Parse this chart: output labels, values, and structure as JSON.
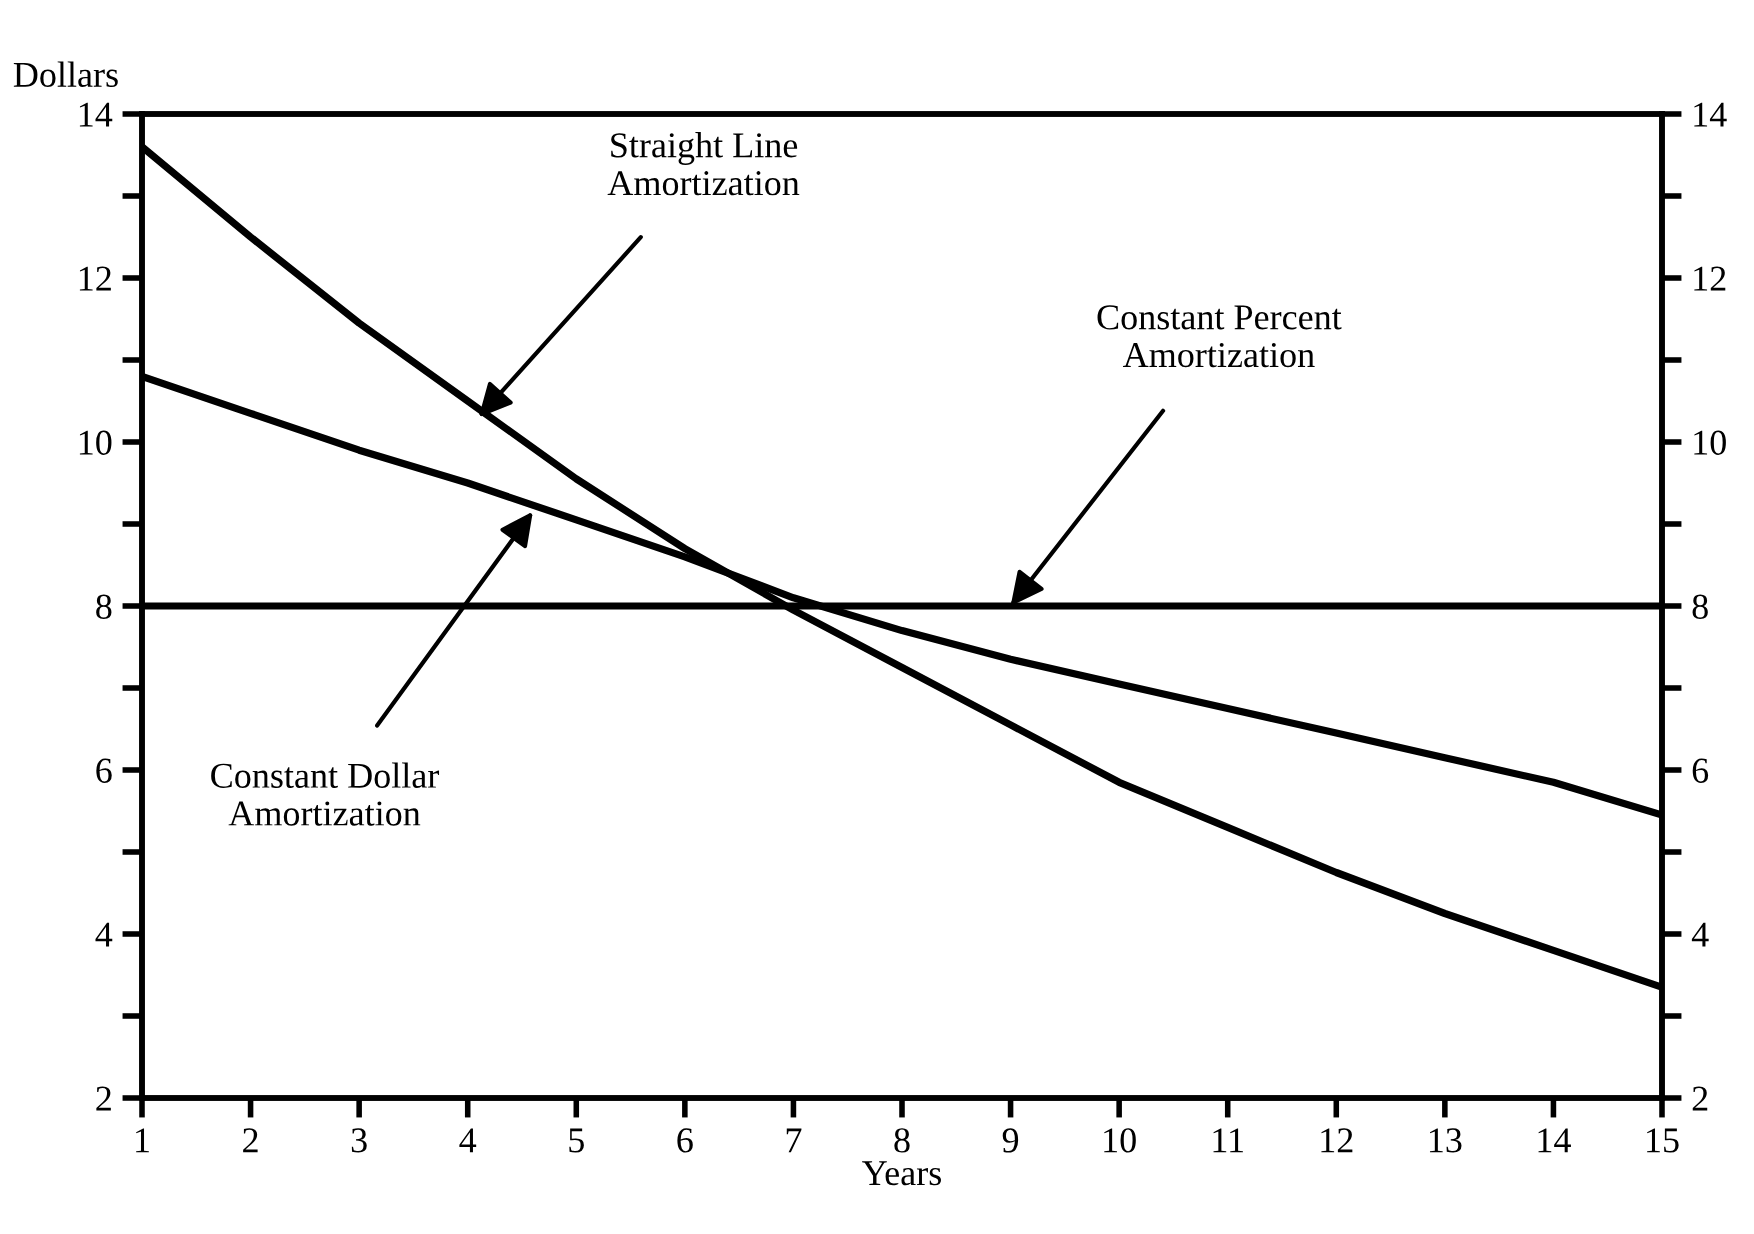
{
  "chart_data": {
    "type": "line",
    "xlabel": "Years",
    "ylabel": "Dollars",
    "x": [
      1,
      2,
      3,
      4,
      5,
      6,
      7,
      8,
      9,
      10,
      11,
      12,
      13,
      14,
      15
    ],
    "series": [
      {
        "color": "#000000",
        "values": [
          13.6,
          12.5,
          11.45,
          10.5,
          9.55,
          8.7,
          7.95,
          7.25,
          6.55,
          5.85,
          5.3,
          4.75,
          4.25,
          3.8,
          3.35
        ]
      },
      {
        "color": "#000000",
        "values": [
          10.8,
          10.35,
          9.9,
          9.5,
          9.05,
          8.6,
          8.1,
          7.7,
          7.35,
          7.05,
          6.75,
          6.45,
          6.15,
          5.85,
          5.45
        ]
      },
      {
        "color": "#000000",
        "values": [
          8,
          8,
          8,
          8,
          8,
          8,
          8,
          8,
          8,
          8,
          8,
          8,
          8,
          8,
          8
        ]
      }
    ],
    "annotations": [
      {
        "text": "Straight Line\nAmortization",
        "x": 4.1,
        "y": 10.3
      },
      {
        "text": "Constant Percent\nAmortization",
        "x": 9.0,
        "y": 8.0
      },
      {
        "text": "Constant Dollar\nAmortization",
        "x": 4.6,
        "y": 9.15
      }
    ],
    "xlim": [
      1,
      15
    ],
    "xticks": [
      1,
      2,
      3,
      4,
      5,
      6,
      7,
      8,
      9,
      10,
      11,
      12,
      13,
      14,
      15
    ],
    "ylim": [
      2,
      14
    ],
    "yticks": [
      2,
      {
        "value": 3,
        "label": null
      },
      4,
      {
        "value": 5,
        "label": null
      },
      6,
      {
        "value": 7,
        "label": null
      },
      8,
      {
        "value": 9,
        "label": null
      },
      10,
      {
        "value": 11,
        "label": null
      },
      12,
      {
        "value": 13,
        "label": null
      },
      14
    ],
    "y2lim": [
      2,
      14
    ],
    "y2ticks": [
      2,
      {
        "value": 3,
        "label": null
      },
      4,
      {
        "value": 5,
        "label": null
      },
      6,
      {
        "value": 7,
        "label": null
      },
      8,
      {
        "value": 9,
        "label": null
      },
      10,
      {
        "value": 11,
        "label": null
      },
      12,
      {
        "value": 13,
        "label": null
      },
      14
    ],
    "grid": false,
    "legend": false,
    "marker": "none",
    "line_style": "solid"
  }
}
